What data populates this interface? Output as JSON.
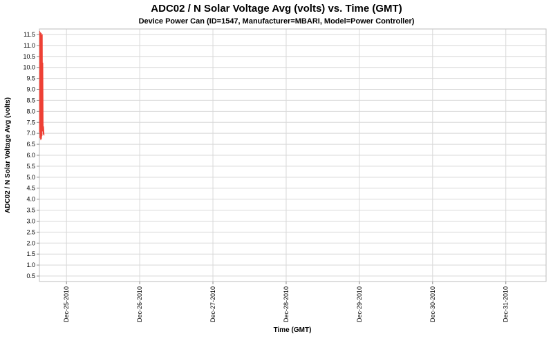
{
  "chart_data": {
    "type": "line",
    "title": "ADC02 / N Solar Voltage Avg (volts) vs. Time (GMT)",
    "subtitle": "Device Power Can (ID=1547, Manufacturer=MBARI, Model=Power Controller)",
    "xlabel": "Time (GMT)",
    "ylabel": "ADC02 / N Solar Voltage Avg (volts)",
    "ylim": [
      0.25,
      11.75
    ],
    "xlim_days": [
      -0.37,
      6.55
    ],
    "grid": true,
    "legend": "none",
    "y_tick_labels": [
      "0.5",
      "1.0",
      "1.5",
      "2.0",
      "2.5",
      "3.0",
      "3.5",
      "4.0",
      "4.5",
      "5.0",
      "5.5",
      "6.0",
      "6.5",
      "7.0",
      "7.5",
      "8.0",
      "8.5",
      "9.0",
      "9.5",
      "10.0",
      "10.5",
      "11.0",
      "11.5"
    ],
    "x_tick_labels": [
      "Dec-25-2010",
      "Dec-26-2010",
      "Dec-27-2010",
      "Dec-28-2010",
      "Dec-29-2010",
      "Dec-30-2010",
      "Dec-31-2010"
    ],
    "x_tick_positions_days": [
      0,
      1,
      2,
      3,
      4,
      5,
      6
    ],
    "colors": {
      "grid": "#d8d8d8",
      "axis": "#bdbdbd",
      "tick": "#8a8a8a",
      "tick_text": "#000000",
      "series": "#ee4035"
    },
    "series": [
      {
        "name": "ADC02 / N Solar Voltage Avg (volts)",
        "color": "#ee4035",
        "points_days_volts": [
          [
            -0.368,
            7.05
          ],
          [
            -0.366,
            11.65
          ],
          [
            -0.363,
            6.8
          ],
          [
            -0.36,
            11.55
          ],
          [
            -0.357,
            6.75
          ],
          [
            -0.354,
            11.6
          ],
          [
            -0.351,
            6.7
          ],
          [
            -0.348,
            11.5
          ],
          [
            -0.345,
            6.85
          ],
          [
            -0.342,
            11.55
          ],
          [
            -0.339,
            6.75
          ],
          [
            -0.336,
            11.45
          ],
          [
            -0.333,
            6.9
          ],
          [
            -0.33,
            11.5
          ],
          [
            -0.327,
            7.1
          ],
          [
            -0.323,
            10.2
          ],
          [
            -0.318,
            6.95
          ],
          [
            -0.312,
            7.3
          ],
          [
            -0.306,
            6.9
          ]
        ]
      }
    ]
  }
}
